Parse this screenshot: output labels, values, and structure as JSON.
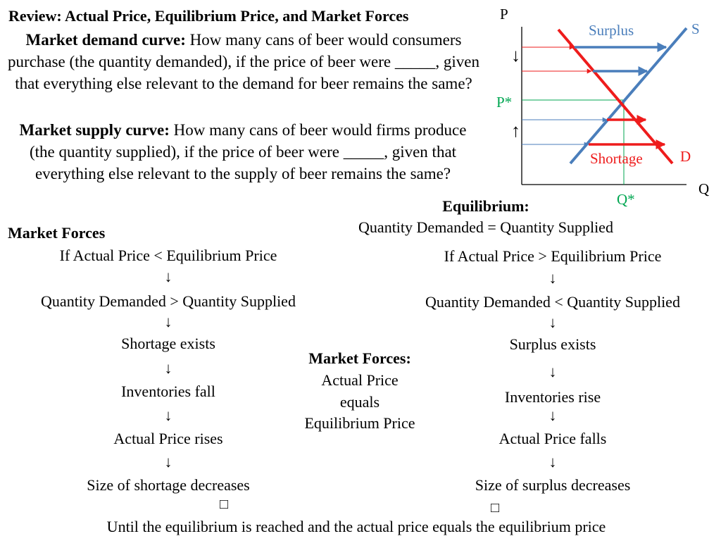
{
  "title": "Review: Actual Price, Equilibrium Price, and Market Forces",
  "demand_def": {
    "label": "Market demand curve:",
    "text": "How many cans of beer would consumers purchase (the quantity demanded), if the price of beer were _____, given that everything else relevant to the demand for beer remains the same?"
  },
  "supply_def": {
    "label": "Market supply curve:",
    "text": "How many cans of beer would firms produce (the quantity supplied), if the price of  beer were _____, given that everything else relevant to the supply of beer remains the same?"
  },
  "graph": {
    "p_label": "P",
    "q_label": "Q",
    "s_label": "S",
    "d_label": "D",
    "pstar_label": "P*",
    "qstar_label": "Q*",
    "surplus_label": "Surplus",
    "shortage_label": "Shortage",
    "down_arrow": "↓",
    "up_arrow": "↑",
    "colors": {
      "supply": "#4a7ebb",
      "demand": "#ee1c1c",
      "equilibrium": "#00a651",
      "axis": "#000000"
    }
  },
  "equilibrium": {
    "label": "Equilibrium:",
    "text": "Quantity Demanded = Quantity Supplied"
  },
  "market_forces_heading": "Market Forces",
  "left_chain": [
    "If Actual Price < Equilibrium Price",
    "Quantity Demanded > Quantity Supplied",
    "Shortage exists",
    "Inventories fall",
    "Actual Price rises",
    "Size of shortage decreases"
  ],
  "right_chain": [
    "If Actual Price > Equilibrium Price",
    "Quantity Demanded < Quantity Supplied",
    "Surplus exists",
    "Inventories rise",
    "Actual Price falls",
    "Size of surplus decreases"
  ],
  "arrow": "↓",
  "box_glyph": "□",
  "center": {
    "label": "Market Forces:",
    "line1": "Actual Price",
    "line2": "equals",
    "line3": "Equilibrium Price"
  },
  "footer": "Until the equilibrium is reached and the actual price equals the equilibrium price"
}
